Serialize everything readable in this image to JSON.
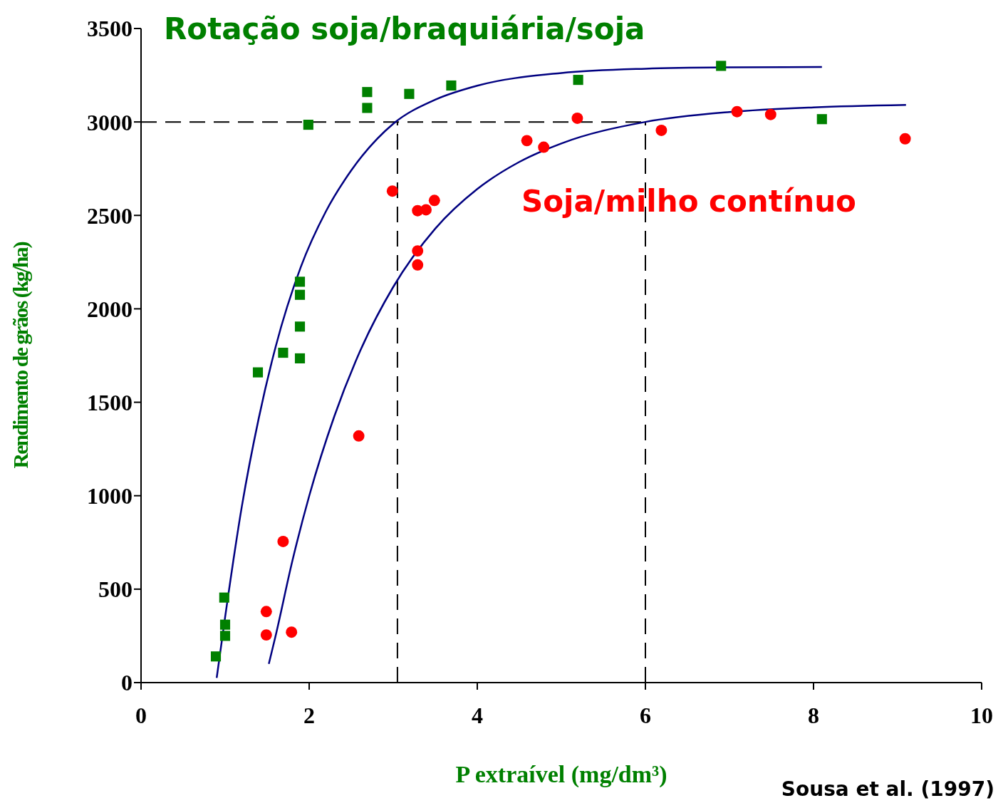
{
  "chart_data": {
    "type": "scatter",
    "xlabel": "P extraível (mg/dm³)",
    "ylabel": "Rendimento de grãos (kg/ha)",
    "xlim": [
      0,
      10
    ],
    "xticks": [
      0,
      2,
      4,
      6,
      8,
      10
    ],
    "ylim": [
      0,
      3500
    ],
    "yticks": [
      0,
      500,
      1000,
      1500,
      2000,
      2500,
      3000,
      3500
    ],
    "series": [
      {
        "name": "Rotação soja/braquiária/soja",
        "marker": "square",
        "color": "#008000",
        "x": [
          0.89,
          0.99,
          1.0,
          1.0,
          1.39,
          1.69,
          1.89,
          1.89,
          1.89,
          1.89,
          1.99,
          2.69,
          2.69,
          3.19,
          3.69,
          5.2,
          6.9,
          8.1
        ],
        "values": [
          140,
          455,
          310,
          250,
          1660,
          1765,
          1735,
          1905,
          2075,
          2145,
          2985,
          3075,
          3160,
          3150,
          3195,
          3225,
          3300,
          3015
        ]
      },
      {
        "name": "Soja/milho contínuo",
        "marker": "circle",
        "color": "#ff0000",
        "x": [
          1.49,
          1.49,
          1.79,
          1.69,
          2.59,
          2.99,
          3.29,
          3.39,
          3.49,
          3.29,
          3.29,
          4.59,
          4.79,
          5.19,
          6.19,
          7.09,
          7.49,
          9.09
        ],
        "values": [
          255,
          380,
          270,
          755,
          1320,
          2630,
          2525,
          2530,
          2580,
          2310,
          2235,
          2900,
          2865,
          3020,
          2955,
          3055,
          3040,
          2910
        ]
      },
      {
        "type": "line",
        "marker": "none",
        "color": "#000080",
        "x": [
          0.9,
          1.0,
          1.2,
          1.4,
          1.6,
          1.9,
          2.2,
          2.5,
          3.0,
          3.5,
          4.0,
          5.0,
          6.0,
          7.0,
          8.1
        ],
        "values": [
          25,
          350,
          945,
          1414,
          1795,
          2223,
          2522,
          2740,
          2990,
          3119,
          3194,
          3262,
          3285,
          3292,
          3294
        ]
      },
      {
        "type": "line",
        "marker": "none",
        "color": "#000080",
        "x": [
          1.52,
          1.6,
          1.8,
          2.0,
          2.3,
          2.6,
          3.0,
          3.5,
          4.0,
          4.5,
          5.0,
          6.0,
          7.0,
          8.0,
          9.1
        ],
        "values": [
          100,
          249,
          651,
          998,
          1426,
          1768,
          2117,
          2429,
          2641,
          2786,
          2885,
          3000,
          3053,
          3078,
          3091
        ]
      }
    ],
    "ref_lines": [
      {
        "axis": "y",
        "value": 3000,
        "line_style": "dashed",
        "color": "#000000"
      },
      {
        "axis": "x",
        "value": 3.05,
        "line_style": "dashed",
        "color": "#000000"
      },
      {
        "axis": "x",
        "value": 6,
        "line_style": "dashed",
        "color": "#000000"
      }
    ],
    "annotations": [
      "Sousa et al. (1997)"
    ]
  }
}
